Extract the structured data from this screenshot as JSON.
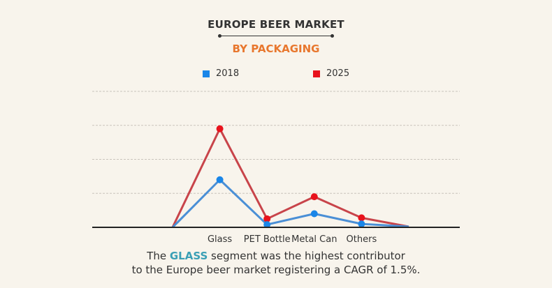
{
  "chart_data": {
    "type": "line",
    "title": "EUROPE BEER MARKET",
    "subtitle": "BY PACKAGING",
    "categories": [
      "",
      "Glass",
      "PET Bottle",
      "Metal Can",
      "Others",
      ""
    ],
    "series": [
      {
        "name": "2018",
        "color": "#4a8fd6",
        "marker_color": "#1a86e8",
        "values": [
          0,
          1.4,
          0.08,
          0.4,
          0.1,
          0.02
        ]
      },
      {
        "name": "2025",
        "color": "#c8444a",
        "marker_color": "#e8121c",
        "values": [
          0,
          2.9,
          0.25,
          0.9,
          0.28,
          0.02
        ]
      }
    ],
    "ylim": [
      0,
      4
    ],
    "grid": true,
    "legend": "top-center",
    "xlabel": "",
    "ylabel": ""
  },
  "caption": {
    "prefix": "The ",
    "highlight": "GLASS",
    "line1_rest": " segment was the highest contributor",
    "line2": "to the Europe beer market registering a CAGR of 1.5%."
  },
  "colors": {
    "accent": "#e8772e",
    "highlight": "#3a9fb5",
    "background": "#f8f4ec"
  }
}
